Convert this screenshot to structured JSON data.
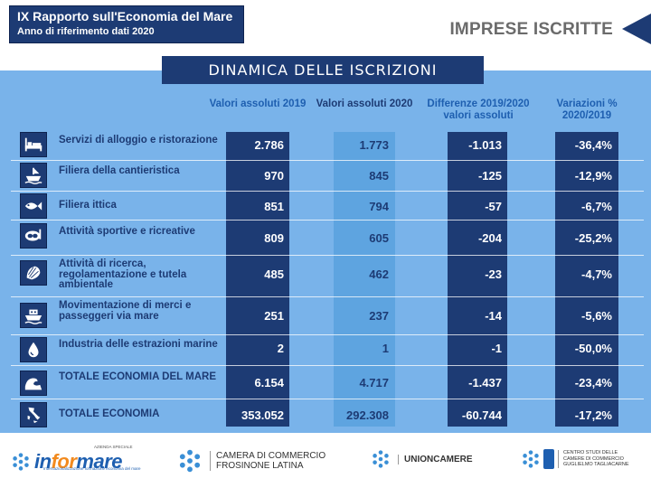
{
  "header": {
    "title": "IX Rapporto sull'Economia del Mare",
    "subtitle": "Anno di riferimento dati 2020",
    "section": "IMPRESE ISCRITTE"
  },
  "banner": "DINAMICA DELLE ISCRIZIONI",
  "columns": {
    "c2019": "Valori assoluti 2019",
    "c2020": "Valori assoluti 2020",
    "diff": "Differenze 2019/2020 valori assoluti",
    "var": "Variazioni % 2020/2019"
  },
  "rows": [
    {
      "label": "Servizi di alloggio e ristorazione",
      "icon": "bed-icon",
      "v2019": "2.786",
      "v2020": "1.773",
      "diff": "-1.013",
      "var": "-36,4%"
    },
    {
      "label": "Filiera della cantieristica",
      "icon": "ship-icon",
      "v2019": "970",
      "v2020": "845",
      "diff": "-125",
      "var": "-12,9%"
    },
    {
      "label": "Filiera ittica",
      "icon": "fish-icon",
      "v2019": "851",
      "v2020": "794",
      "diff": "-57",
      "var": "-6,7%"
    },
    {
      "label": "Attività sportive e ricreative",
      "icon": "diving-mask-icon",
      "v2019": "809",
      "v2020": "605",
      "diff": "-204",
      "var": "-25,2%"
    },
    {
      "label": "Attività di ricerca, regolamentazione e tutela ambientale",
      "icon": "shell-icon",
      "v2019": "485",
      "v2020": "462",
      "diff": "-23",
      "var": "-4,7%"
    },
    {
      "label": "Movimentazione di merci e passeggeri via mare",
      "icon": "boat-icon",
      "v2019": "251",
      "v2020": "237",
      "diff": "-14",
      "var": "-5,6%"
    },
    {
      "label": "Industria delle estrazioni marine",
      "icon": "oil-drop-icon",
      "v2019": "2",
      "v2020": "1",
      "diff": "-1",
      "var": "-50,0%"
    },
    {
      "label": "TOTALE ECONOMIA DEL MARE",
      "icon": "wave-icon",
      "v2019": "6.154",
      "v2020": "4.717",
      "diff": "-1.437",
      "var": "-23,4%"
    },
    {
      "label": "TOTALE ECONOMIA",
      "icon": "italy-map-icon",
      "v2019": "353.052",
      "v2020": "292.308",
      "diff": "-60.744",
      "var": "-17,2%"
    }
  ],
  "footer": {
    "informare": {
      "pre": "in",
      "hl": "for",
      "post": "mare",
      "top": "AZIENDA SPECIALE",
      "bottom": "Internazionalizzazione formazione economia del mare"
    },
    "camera": {
      "line1": "CAMERA DI COMMERCIO",
      "line2": "FROSINONE LATINA"
    },
    "unioncamere": "UNIONCAMERE",
    "centro": {
      "line1": "CENTRO STUDI DELLE",
      "line2": "CAMERE DI COMMERCIO",
      "line3": "GUGLIELMO TAGLIACARNE"
    }
  },
  "colors": {
    "navy": "#1d3b74",
    "panel": "#79b3ea",
    "light_col": "#5ea4e0",
    "accent": "#f28a1e"
  }
}
